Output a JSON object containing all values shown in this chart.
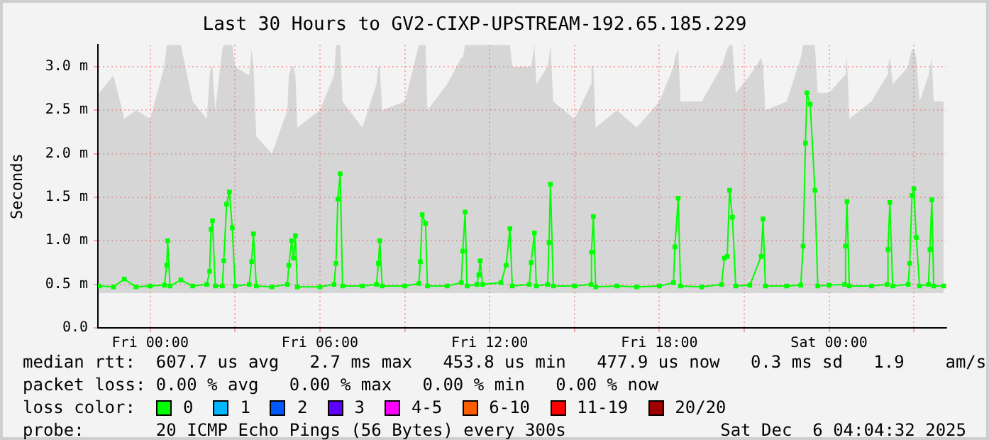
{
  "chart_data": {
    "type": "line",
    "title": "Last 30 Hours to GV2-CIXP-UPSTREAM-192.65.185.229",
    "ylabel": "Seconds",
    "x": [
      "2025-12-04T22:12",
      "2025-12-04T22:42",
      "2025-12-04T23:05",
      "2025-12-04T23:30",
      "2025-12-05T00:00",
      "2025-12-05T00:30",
      "2025-12-05T00:35",
      "2025-12-05T00:37",
      "2025-12-05T00:42",
      "2025-12-05T01:05",
      "2025-12-05T01:30",
      "2025-12-05T02:00",
      "2025-12-05T02:06",
      "2025-12-05T02:09",
      "2025-12-05T02:12",
      "2025-12-05T02:18",
      "2025-12-05T02:33",
      "2025-12-05T02:36",
      "2025-12-05T02:42",
      "2025-12-05T02:48",
      "2025-12-05T02:54",
      "2025-12-05T03:00",
      "2025-12-05T03:30",
      "2025-12-05T03:35",
      "2025-12-05T03:39",
      "2025-12-05T03:45",
      "2025-12-05T04:18",
      "2025-12-05T04:51",
      "2025-12-05T04:54",
      "2025-12-05T05:00",
      "2025-12-05T05:04",
      "2025-12-05T05:08",
      "2025-12-05T05:12",
      "2025-12-05T06:00",
      "2025-12-05T06:30",
      "2025-12-05T06:34",
      "2025-12-05T06:38",
      "2025-12-05T06:43",
      "2025-12-05T06:48",
      "2025-12-05T07:30",
      "2025-12-05T08:00",
      "2025-12-05T08:04",
      "2025-12-05T08:07",
      "2025-12-05T08:12",
      "2025-12-05T09:00",
      "2025-12-05T09:30",
      "2025-12-05T09:33",
      "2025-12-05T09:37",
      "2025-12-05T09:44",
      "2025-12-05T09:48",
      "2025-12-05T10:30",
      "2025-12-05T11:00",
      "2025-12-05T11:03",
      "2025-12-05T11:08",
      "2025-12-05T11:12",
      "2025-12-05T11:33",
      "2025-12-05T11:37",
      "2025-12-05T11:40",
      "2025-12-05T11:45",
      "2025-12-05T12:24",
      "2025-12-05T12:35",
      "2025-12-05T12:43",
      "2025-12-05T12:48",
      "2025-12-05T13:24",
      "2025-12-05T13:28",
      "2025-12-05T13:35",
      "2025-12-05T13:39",
      "2025-12-05T14:03",
      "2025-12-05T14:06",
      "2025-12-05T14:09",
      "2025-12-05T14:15",
      "2025-12-05T15:00",
      "2025-12-05T15:35",
      "2025-12-05T15:36",
      "2025-12-05T15:40",
      "2025-12-05T15:45",
      "2025-12-05T16:30",
      "2025-12-05T17:12",
      "2025-12-05T18:00",
      "2025-12-05T18:30",
      "2025-12-05T18:33",
      "2025-12-05T18:40",
      "2025-12-05T18:45",
      "2025-12-05T19:30",
      "2025-12-05T20:12",
      "2025-12-05T20:18",
      "2025-12-05T20:24",
      "2025-12-05T20:29",
      "2025-12-05T20:35",
      "2025-12-05T20:42",
      "2025-12-05T21:12",
      "2025-12-05T21:36",
      "2025-12-05T21:40",
      "2025-12-05T21:45",
      "2025-12-05T22:30",
      "2025-12-05T23:00",
      "2025-12-05T23:05",
      "2025-12-05T23:10",
      "2025-12-05T23:13",
      "2025-12-05T23:20",
      "2025-12-05T23:30",
      "2025-12-05T23:36",
      "2025-12-06T00:00",
      "2025-12-06T00:33",
      "2025-12-06T00:35",
      "2025-12-06T00:38",
      "2025-12-06T00:43",
      "2025-12-06T01:30",
      "2025-12-06T02:03",
      "2025-12-06T02:05",
      "2025-12-06T02:09",
      "2025-12-06T02:15",
      "2025-12-06T02:48",
      "2025-12-06T02:51",
      "2025-12-06T02:56",
      "2025-12-06T03:00",
      "2025-12-06T03:05",
      "2025-12-06T03:12",
      "2025-12-06T03:31",
      "2025-12-06T03:34",
      "2025-12-06T03:38",
      "2025-12-06T03:42",
      "2025-12-06T04:03"
    ],
    "series": [
      {
        "color": "#00ff00",
        "marker": "square",
        "values": [
          0.48,
          0.47,
          0.56,
          0.47,
          0.48,
          0.49,
          0.72,
          1.0,
          0.48,
          0.55,
          0.48,
          0.5,
          0.65,
          1.13,
          1.23,
          0.48,
          0.48,
          0.77,
          1.42,
          1.56,
          1.15,
          0.48,
          0.5,
          0.76,
          1.08,
          0.48,
          0.47,
          0.5,
          0.72,
          1.0,
          0.8,
          1.06,
          0.47,
          0.47,
          0.5,
          0.74,
          1.48,
          1.77,
          0.48,
          0.48,
          0.5,
          0.74,
          1.0,
          0.48,
          0.48,
          0.51,
          0.76,
          1.3,
          1.2,
          0.48,
          0.48,
          0.52,
          0.88,
          1.33,
          0.48,
          0.5,
          0.61,
          0.77,
          0.5,
          0.52,
          0.72,
          1.14,
          0.48,
          0.5,
          0.75,
          1.09,
          0.48,
          0.5,
          0.98,
          1.65,
          0.48,
          0.48,
          0.5,
          0.87,
          1.28,
          0.47,
          0.48,
          0.47,
          0.48,
          0.52,
          0.93,
          1.49,
          0.48,
          0.47,
          0.5,
          0.8,
          0.82,
          1.58,
          1.27,
          0.48,
          0.49,
          0.82,
          1.25,
          0.48,
          0.48,
          0.49,
          0.94,
          2.12,
          2.7,
          2.57,
          1.58,
          0.48,
          0.49,
          0.5,
          0.94,
          1.45,
          0.48,
          0.48,
          0.5,
          0.9,
          1.44,
          0.48,
          0.5,
          0.74,
          1.52,
          1.6,
          1.04,
          0.48,
          0.5,
          0.9,
          1.47,
          0.48,
          0.48
        ],
        "lower": [
          0.4,
          0.4,
          0.4,
          0.4,
          0.4,
          0.4,
          0.4,
          0.4,
          0.4,
          0.4,
          0.4,
          0.4,
          0.4,
          0.4,
          0.4,
          0.4,
          0.4,
          0.4,
          0.4,
          0.4,
          0.4,
          0.4,
          0.4,
          0.4,
          0.4,
          0.4,
          0.4,
          0.4,
          0.4,
          0.4,
          0.4,
          0.4,
          0.4,
          0.4,
          0.4,
          0.4,
          0.4,
          0.4,
          0.4,
          0.4,
          0.4,
          0.4,
          0.4,
          0.4,
          0.4,
          0.4,
          0.4,
          0.4,
          0.4,
          0.4,
          0.4,
          0.4,
          0.4,
          0.4,
          0.4,
          0.4,
          0.4,
          0.4,
          0.4,
          0.4,
          0.4,
          0.4,
          0.4,
          0.4,
          0.4,
          0.4,
          0.4,
          0.4,
          0.4,
          0.4,
          0.4,
          0.4,
          0.4,
          0.4,
          0.4,
          0.4,
          0.4,
          0.4,
          0.4,
          0.4,
          0.4,
          0.4,
          0.4,
          0.4,
          0.4,
          0.4,
          0.4,
          0.4,
          0.4,
          0.4,
          0.4,
          0.4,
          0.4,
          0.4,
          0.4,
          0.4,
          0.4,
          0.4,
          0.4,
          0.4,
          0.4,
          0.4,
          0.4,
          0.4,
          0.4,
          0.4,
          0.4,
          0.4,
          0.4,
          0.4,
          0.4,
          0.4,
          0.4,
          0.4,
          0.4,
          0.4,
          0.4,
          0.4,
          0.4,
          0.4,
          0.4,
          0.4,
          0.4
        ],
        "upper": [
          2.7,
          2.9,
          2.4,
          2.5,
          2.4,
          3.0,
          3.25,
          3.25,
          3.25,
          3.25,
          2.6,
          2.4,
          2.9,
          3.0,
          3.0,
          2.5,
          3.2,
          3.25,
          3.25,
          3.25,
          3.25,
          3.0,
          2.9,
          3.2,
          3.0,
          2.2,
          2.0,
          2.5,
          2.9,
          3.0,
          3.0,
          2.9,
          2.3,
          2.5,
          2.9,
          3.25,
          3.25,
          3.25,
          2.6,
          2.3,
          2.8,
          3.0,
          3.0,
          2.5,
          2.6,
          3.25,
          3.25,
          3.25,
          3.25,
          2.5,
          2.8,
          3.1,
          3.1,
          3.25,
          3.25,
          3.25,
          3.25,
          3.25,
          3.25,
          3.25,
          3.25,
          3.25,
          3.0,
          3.0,
          3.0,
          3.25,
          2.8,
          3.0,
          3.1,
          3.25,
          2.6,
          2.4,
          2.8,
          3.0,
          3.0,
          2.3,
          2.5,
          2.3,
          2.6,
          3.0,
          3.1,
          3.2,
          2.6,
          2.6,
          3.0,
          3.1,
          3.2,
          3.25,
          3.25,
          2.7,
          2.9,
          3.1,
          3.0,
          2.5,
          2.6,
          3.1,
          3.25,
          3.25,
          3.25,
          3.25,
          3.25,
          2.7,
          2.7,
          2.9,
          3.0,
          3.1,
          2.4,
          2.6,
          2.9,
          3.0,
          3.1,
          2.8,
          3.0,
          3.1,
          3.2,
          3.2,
          3.1,
          2.6,
          2.9,
          3.0,
          3.1,
          2.6,
          2.6
        ]
      }
    ],
    "xlim": [
      "2025-12-04T22:09",
      "2025-12-06T04:09"
    ],
    "xticks": [
      {
        "value": "2025-12-05T00:00",
        "label": "Fri 00:00"
      },
      {
        "value": "2025-12-05T03:00",
        "label": null
      },
      {
        "value": "2025-12-05T06:00",
        "label": "Fri 06:00"
      },
      {
        "value": "2025-12-05T09:00",
        "label": null
      },
      {
        "value": "2025-12-05T12:00",
        "label": "Fri 12:00"
      },
      {
        "value": "2025-12-05T15:00",
        "label": null
      },
      {
        "value": "2025-12-05T18:00",
        "label": "Fri 18:00"
      },
      {
        "value": "2025-12-05T21:00",
        "label": null
      },
      {
        "value": "2025-12-06T00:00",
        "label": "Sat 00:00"
      },
      {
        "value": "2025-12-06T03:00",
        "label": null
      }
    ],
    "ylim": [
      0,
      3.25
    ],
    "yticks": [
      {
        "value": 0,
        "label": "0.0"
      },
      {
        "value": 0.5,
        "label": "0.5 m"
      },
      {
        "value": 1,
        "label": "1.0 m"
      },
      {
        "value": 1.5,
        "label": "1.5 m"
      },
      {
        "value": 2,
        "label": "2.0 m"
      },
      {
        "value": 2.5,
        "label": "2.5 m"
      },
      {
        "value": 3,
        "label": "3.0 m"
      }
    ],
    "grid": true,
    "annotations": [
      "median rtt:  607.7 us avg   2.7 ms max   453.8 us min   477.9 us now   0.3 ms sd   1.9    am/s",
      "packet loss: 0.00 % avg   0.00 % max   0.00 % min   0.00 % now",
      "loss color:",
      "0",
      "1",
      "2",
      "3",
      "4-5",
      "6-10",
      "11-19",
      "20/20",
      "probe:       20 ICMP Echo Pings (56 Bytes) every 300s",
      "Sat Dec  6 04:04:32 2025"
    ]
  }
}
